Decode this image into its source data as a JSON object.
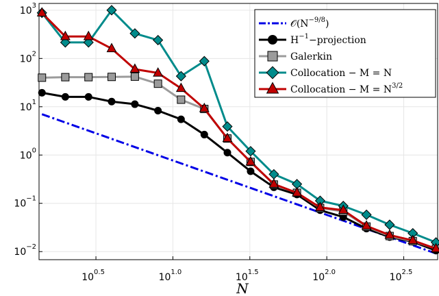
{
  "chart_data": {
    "type": "line",
    "title": "",
    "xlabel": "N",
    "ylabel": "",
    "x_scale": "log10",
    "y_scale": "log10",
    "xlim": [
      1.35,
      525
    ],
    "ylim": [
      0.0068,
      1380
    ],
    "grid": true,
    "legend_position": "top-right",
    "x_ticks": [
      {
        "base": "10",
        "exp": "0.5",
        "value": 3.1623
      },
      {
        "base": "10",
        "exp": "1.0",
        "value": 10
      },
      {
        "base": "10",
        "exp": "1.5",
        "value": 31.623
      },
      {
        "base": "10",
        "exp": "2.0",
        "value": 100
      },
      {
        "base": "10",
        "exp": "2.5",
        "value": 316.23
      }
    ],
    "y_ticks": [
      {
        "base": "10",
        "exp": "3",
        "value": 1000
      },
      {
        "base": "10",
        "exp": "2",
        "value": 100
      },
      {
        "base": "10",
        "exp": "1",
        "value": 10
      },
      {
        "base": "10",
        "exp": "0",
        "value": 1
      },
      {
        "base": "10",
        "exp": "−1",
        "value": 0.1
      },
      {
        "base": "10",
        "exp": "−2",
        "value": 0.01
      }
    ],
    "series": [
      {
        "legend_main": "𝒪(N",
        "legend_sup": "−9/8",
        "legend_tail": ")",
        "color": "#0000e6",
        "dash": "dashdot",
        "marker": "none",
        "x": [
          1.41,
          525
        ],
        "y": [
          7.0,
          0.0089
        ]
      },
      {
        "legend_main": "H",
        "legend_sup": "−1",
        "legend_tail": "−projection",
        "color": "#000000",
        "dash": "solid",
        "marker": "circle",
        "x": [
          1.41,
          2.0,
          2.83,
          4.0,
          5.66,
          8.0,
          11.3,
          16.0,
          22.6,
          32.0,
          45.3,
          64.0,
          90.5,
          128.0,
          181.0,
          256.0,
          362.0,
          512.0
        ],
        "y": [
          19.5,
          16.0,
          16.0,
          12.8,
          11.3,
          8.3,
          5.5,
          2.65,
          1.12,
          0.46,
          0.215,
          0.152,
          0.072,
          0.052,
          0.03,
          0.02,
          0.016,
          0.0105
        ]
      },
      {
        "legend_main": "Galerkin",
        "legend_sup": "",
        "legend_tail": "",
        "color": "#9b9b9b",
        "dash": "solid",
        "marker": "square",
        "x": [
          1.41,
          2.0,
          2.83,
          4.0,
          5.66,
          8.0,
          11.3,
          16.0,
          22.6,
          32.0,
          45.3,
          64.0,
          90.5,
          128.0,
          181.0,
          256.0,
          362.0,
          512.0
        ],
        "y": [
          40.0,
          41.0,
          41.0,
          41.5,
          42.0,
          30.0,
          14.0,
          9.0,
          2.2,
          0.72,
          0.245,
          0.165,
          0.08,
          0.068,
          0.033,
          0.021,
          0.0165,
          0.0115
        ]
      },
      {
        "legend_main": "Collocation − M = N",
        "legend_sup": "",
        "legend_tail": "",
        "color": "#008b8b",
        "dash": "solid",
        "marker": "diamond",
        "x": [
          1.41,
          2.0,
          2.83,
          4.0,
          5.66,
          8.0,
          11.3,
          16.0,
          22.6,
          32.0,
          45.3,
          64.0,
          90.5,
          128.0,
          181.0,
          256.0,
          362.0,
          512.0
        ],
        "y": [
          880.0,
          215.0,
          215.0,
          1000.0,
          330.0,
          240.0,
          43.0,
          88.0,
          3.9,
          1.2,
          0.4,
          0.25,
          0.113,
          0.088,
          0.058,
          0.036,
          0.024,
          0.0155
        ]
      },
      {
        "legend_main": "Collocation − M = N",
        "legend_sup": "3/2",
        "legend_tail": "",
        "color": "#c00000",
        "dash": "solid",
        "marker": "triangle",
        "x": [
          1.41,
          2.0,
          2.83,
          4.0,
          5.66,
          8.0,
          11.3,
          16.0,
          22.6,
          32.0,
          45.3,
          64.0,
          90.5,
          128.0,
          181.0,
          256.0,
          362.0,
          512.0
        ],
        "y": [
          880.0,
          285.0,
          285.0,
          160.0,
          60.0,
          50.0,
          24.0,
          9.2,
          2.2,
          0.72,
          0.25,
          0.165,
          0.082,
          0.072,
          0.034,
          0.022,
          0.017,
          0.0115
        ]
      }
    ]
  }
}
